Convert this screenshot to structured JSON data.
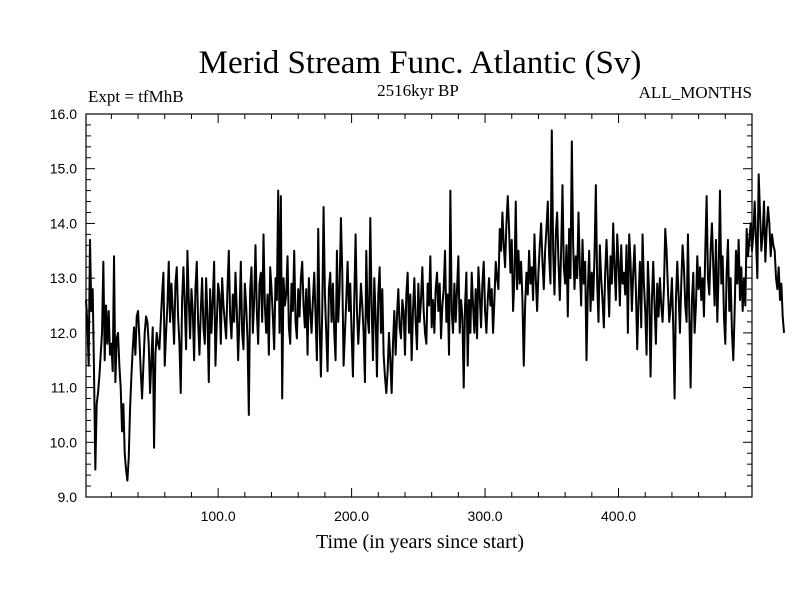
{
  "chart_data": {
    "type": "line",
    "title": "Merid Stream Func. Atlantic (Sv)",
    "subtitle_left": "Expt = tfMhB",
    "subtitle_center": "2516kyr BP",
    "subtitle_right": "ALL_MONTHS",
    "xlabel": "Time (in years since start)",
    "ylabel": "",
    "xlim": [
      1,
      500
    ],
    "ylim": [
      9.0,
      16.0
    ],
    "x_ticks": [
      100,
      200,
      300,
      400
    ],
    "x_tick_labels": [
      "100.0",
      "200.0",
      "300.0",
      "400.0"
    ],
    "y_ticks": [
      9,
      10,
      11,
      12,
      13,
      14,
      15,
      16
    ],
    "y_tick_labels": [
      "9.0",
      "10.0",
      "11.0",
      "12.0",
      "13.0",
      "14.0",
      "15.0",
      "16.0"
    ],
    "series": [
      {
        "name": "Merid Stream Func. Atlantic",
        "x_start": 1,
        "x_step": 1,
        "values": [
          12.6,
          12.2,
          11.4,
          13.7,
          12.4,
          12.8,
          11.3,
          9.5,
          10.7,
          10.9,
          11.2,
          11.6,
          12.0,
          13.3,
          11.5,
          12.5,
          11.8,
          12.4,
          11.6,
          11.8,
          11.3,
          13.4,
          11.1,
          11.9,
          12.0,
          11.4,
          11.0,
          10.2,
          10.7,
          9.8,
          9.5,
          9.3,
          9.7,
          10.6,
          11.2,
          11.7,
          12.1,
          11.6,
          12.3,
          12.4,
          11.9,
          11.3,
          10.8,
          11.4,
          12.0,
          12.3,
          12.2,
          11.8,
          10.9,
          11.5,
          12.1,
          9.9,
          11.6,
          12.0,
          11.8,
          11.7,
          12.2,
          12.7,
          13.1,
          11.4,
          12.0,
          12.5,
          13.3,
          12.2,
          12.9,
          12.4,
          11.8,
          12.9,
          13.2,
          12.3,
          11.8,
          10.9,
          12.6,
          13.2,
          12.5,
          11.7,
          13.5,
          12.6,
          11.9,
          12.8,
          12.4,
          11.5,
          12.8,
          13.3,
          12.2,
          11.6,
          12.4,
          13.0,
          12.1,
          11.8,
          13.0,
          12.3,
          11.1,
          12.8,
          12.0,
          12.6,
          13.3,
          11.4,
          12.2,
          12.9,
          12.7,
          11.8,
          13.0,
          12.5,
          12.2,
          11.9,
          12.8,
          13.5,
          12.3,
          11.9,
          12.7,
          12.2,
          13.1,
          12.4,
          11.5,
          12.3,
          13.3,
          12.0,
          11.7,
          12.9,
          12.5,
          11.9,
          10.5,
          12.8,
          13.2,
          12.0,
          12.6,
          13.6,
          12.4,
          11.8,
          12.9,
          13.1,
          12.2,
          13.8,
          12.5,
          12.0,
          12.7,
          11.6,
          13.2,
          12.8,
          12.3,
          11.7,
          13.0,
          12.6,
          14.6,
          12.0,
          14.5,
          10.8,
          13.0,
          12.5,
          12.7,
          13.4,
          12.1,
          11.8,
          12.9,
          12.4,
          13.5,
          12.2,
          11.9,
          12.8,
          12.3,
          13.0,
          13.3,
          12.5,
          12.1,
          12.8,
          11.6,
          13.0,
          12.4,
          12.0,
          12.6,
          13.1,
          12.3,
          11.5,
          13.9,
          12.2,
          11.2,
          12.4,
          14.3,
          12.7,
          12.0,
          11.3,
          12.8,
          13.1,
          12.2,
          12.9,
          12.0,
          11.5,
          13.5,
          12.2,
          12.8,
          14.1,
          13.1,
          11.4,
          12.0,
          12.6,
          13.3,
          12.4,
          12.9,
          12.0,
          11.2,
          12.6,
          13.8,
          12.4,
          11.8,
          12.3,
          12.9,
          12.5,
          12.0,
          11.1,
          13.5,
          12.3,
          12.0,
          14.1,
          12.5,
          11.5,
          13.0,
          12.3,
          11.2,
          12.7,
          13.2,
          12.0,
          12.8,
          11.6,
          11.2,
          10.9,
          11.3,
          12.0,
          11.5,
          10.9,
          11.8,
          12.4,
          11.6,
          12.3,
          12.8,
          12.1,
          11.9,
          12.6,
          12.4,
          11.6,
          12.7,
          13.1,
          12.0,
          12.7,
          11.5,
          12.4,
          13.0,
          12.2,
          11.7,
          12.9,
          12.2,
          12.6,
          13.2,
          12.4,
          12.0,
          11.8,
          12.9,
          12.5,
          13.4,
          12.1,
          12.6,
          12.0,
          12.8,
          13.1,
          12.4,
          12.9,
          11.9,
          12.5,
          12.8,
          13.5,
          12.2,
          12.7,
          11.6,
          14.6,
          12.4,
          12.0,
          12.9,
          12.2,
          12.8,
          13.4,
          12.0,
          12.6,
          12.3,
          11.0,
          12.5,
          13.1,
          11.4,
          12.6,
          12.0,
          13.1,
          12.5,
          12.0,
          12.8,
          11.9,
          13.2,
          12.7,
          12.1,
          12.9,
          13.3,
          12.4,
          12.0,
          12.6,
          13.0,
          12.5,
          12.8,
          12.0,
          12.6,
          13.3,
          13.0,
          12.8,
          13.9,
          13.5,
          14.2,
          13.6,
          13.2,
          14.0,
          14.5,
          13.9,
          13.1,
          13.7,
          12.4,
          13.0,
          14.4,
          12.8,
          13.5,
          12.9,
          13.3,
          12.6,
          11.4,
          12.5,
          13.1,
          12.7,
          13.5,
          12.9,
          13.2,
          12.6,
          13.8,
          13.0,
          12.4,
          13.1,
          13.6,
          14.0,
          13.3,
          12.8,
          13.5,
          13.9,
          14.4,
          13.4,
          12.9,
          15.7,
          13.5,
          12.7,
          13.8,
          14.2,
          13.3,
          12.6,
          13.5,
          14.7,
          13.2,
          12.9,
          13.6,
          12.3,
          13.9,
          13.0,
          15.5,
          13.6,
          12.8,
          13.4,
          13.0,
          14.2,
          13.2,
          12.5,
          13.7,
          12.9,
          13.3,
          11.5,
          12.8,
          13.5,
          12.4,
          13.1,
          12.6,
          13.4,
          14.7,
          12.9,
          12.2,
          13.6,
          13.0,
          12.6,
          12.1,
          13.1,
          13.7,
          13.0,
          12.3,
          13.4,
          12.9,
          14.0,
          13.2,
          12.6,
          13.8,
          13.3,
          12.5,
          13.6,
          12.9,
          13.1,
          12.7,
          13.6,
          12.0,
          13.8,
          13.3,
          12.4,
          13.1,
          13.6,
          12.8,
          11.7,
          12.6,
          13.3,
          12.1,
          13.8,
          12.9,
          12.4,
          11.6,
          13.3,
          12.7,
          11.2,
          12.6,
          13.3,
          12.5,
          11.8,
          12.9,
          12.3,
          13.0,
          12.5,
          12.2,
          12.8,
          13.9,
          13.5,
          12.8,
          12.2,
          12.5,
          13.0,
          12.1,
          10.8,
          12.6,
          13.3,
          12.7,
          12.0,
          12.9,
          13.6,
          13.2,
          12.5,
          12.2,
          13.8,
          12.4,
          11.0,
          12.6,
          13.1,
          12.0,
          12.5,
          13.4,
          12.8,
          13.2,
          12.6,
          13.0,
          12.3,
          13.5,
          14.5,
          13.0,
          12.7,
          13.5,
          14.0,
          13.2,
          12.5,
          13.7,
          12.2,
          13.1,
          14.6,
          12.9,
          13.4,
          12.3,
          11.8,
          13.1,
          13.7,
          12.4,
          13.0,
          12.0,
          11.5,
          12.4,
          13.5,
          12.9,
          13.7,
          12.6,
          13.2,
          12.4,
          13.0,
          12.5,
          13.9,
          13.4,
          13.7,
          14.0,
          13.5,
          13.8,
          14.4,
          13.7,
          13.0,
          14.9,
          14.2,
          13.5,
          13.8,
          14.4,
          13.3,
          13.9,
          14.3,
          14.0,
          13.4,
          13.8,
          13.6,
          13.5,
          13.0,
          12.8,
          13.2,
          12.6,
          12.9,
          12.3,
          12.0
        ]
      }
    ]
  }
}
